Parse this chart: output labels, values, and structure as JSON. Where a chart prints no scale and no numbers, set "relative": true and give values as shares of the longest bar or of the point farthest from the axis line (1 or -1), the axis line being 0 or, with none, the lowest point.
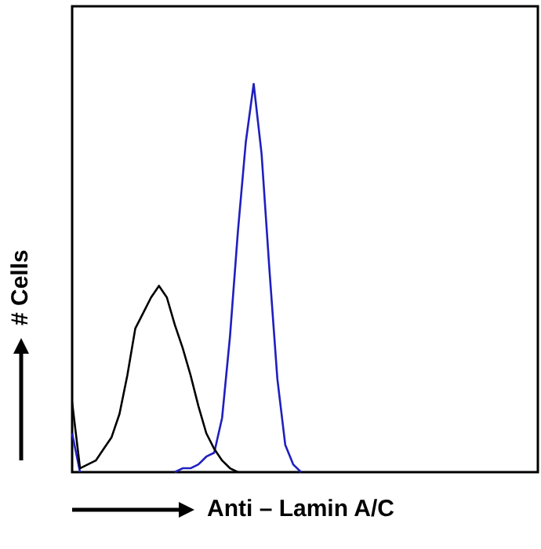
{
  "chart_data": {
    "type": "line",
    "relative": true,
    "xlabel": "Anti – Lamin A/C",
    "ylabel": "# Cells",
    "legend": false,
    "marker": "none",
    "categories": [
      null,
      null,
      null,
      null,
      null,
      null,
      null,
      null,
      null,
      null,
      null,
      null,
      null,
      null,
      null,
      null,
      null,
      null,
      null,
      null,
      null,
      null,
      null,
      null,
      null,
      null,
      null,
      null,
      null,
      null,
      null,
      null,
      null,
      null,
      null,
      null,
      null,
      null,
      null,
      null,
      null,
      null,
      null,
      null,
      null,
      null,
      null,
      null,
      null,
      null,
      null,
      null,
      null,
      null,
      null,
      null,
      null,
      null,
      null,
      null
    ],
    "series": [
      {
        "color": "#000000",
        "values": [
          0.18,
          0.01,
          0.02,
          0.03,
          0.06,
          0.09,
          0.15,
          0.25,
          0.37,
          0.41,
          0.45,
          0.48,
          0.45,
          0.38,
          0.32,
          0.25,
          0.17,
          0.1,
          0.06,
          0.03,
          0.01,
          0,
          null,
          null,
          null,
          null,
          null,
          null,
          null,
          null,
          null,
          null,
          null,
          null,
          null,
          null,
          null,
          null,
          null,
          null,
          null,
          null,
          null,
          null,
          null,
          null,
          null,
          null,
          null,
          null,
          null,
          null,
          null,
          null,
          null,
          null,
          null,
          null,
          null,
          null
        ]
      },
      {
        "color": "#1f1fbf",
        "values": [
          0.1,
          0,
          null,
          null,
          null,
          null,
          null,
          null,
          null,
          null,
          null,
          null,
          null,
          0,
          0.01,
          0.01,
          0.02,
          0.04,
          0.05,
          0.14,
          0.35,
          0.62,
          0.85,
          1,
          0.82,
          0.52,
          0.24,
          0.07,
          0.02,
          0,
          null,
          null,
          null,
          null,
          null,
          null,
          null,
          null,
          null,
          null,
          null,
          null,
          null,
          null,
          null,
          null,
          null,
          null,
          null,
          null,
          null,
          null,
          null,
          null,
          null,
          null,
          null,
          null,
          null,
          null
        ]
      }
    ]
  }
}
